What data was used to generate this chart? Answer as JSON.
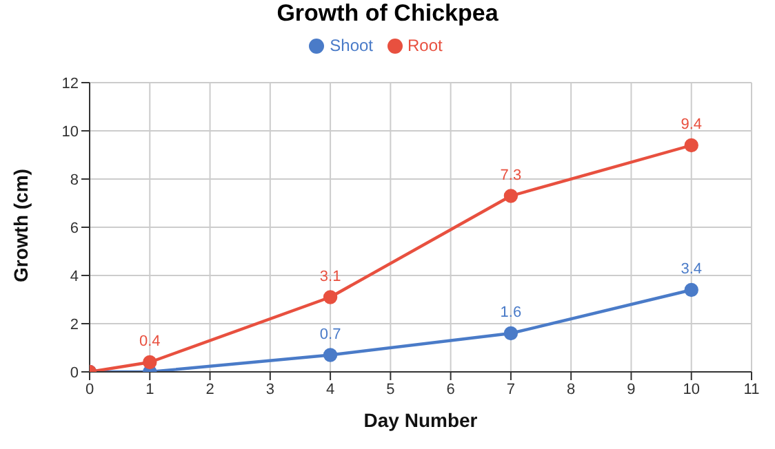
{
  "chart_data": {
    "type": "line",
    "title": "Growth of Chickpea",
    "xlabel": "Day Number",
    "ylabel": "Growth (cm)",
    "x": [
      0,
      1,
      4,
      7,
      10
    ],
    "series": [
      {
        "name": "Shoot",
        "color": "#4a7bc8",
        "values": [
          0,
          0,
          0.7,
          1.6,
          3.4
        ],
        "value_labels": [
          null,
          null,
          "0.7",
          "1.6",
          "3.4"
        ]
      },
      {
        "name": "Root",
        "color": "#e8503f",
        "values": [
          0,
          0.4,
          3.1,
          7.3,
          9.4
        ],
        "value_labels": [
          null,
          "0.4",
          "3.1",
          "7.3",
          "9.4"
        ]
      }
    ],
    "xlim": [
      0,
      11
    ],
    "xticks": [
      0,
      1,
      2,
      3,
      4,
      5,
      6,
      7,
      8,
      9,
      10,
      11
    ],
    "ylim": [
      0,
      12
    ],
    "yticks": [
      0,
      2,
      4,
      6,
      8,
      10,
      12
    ],
    "grid": true,
    "legend": "top",
    "marker": "circle",
    "line_style": "solid"
  }
}
